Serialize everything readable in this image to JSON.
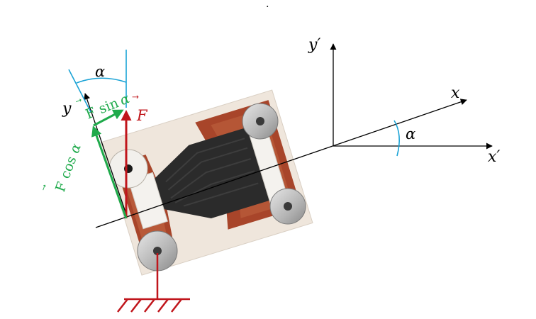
{
  "labels": {
    "alpha": "α",
    "axis_y": "y",
    "axis_y_prime": "y′",
    "axis_x": "x",
    "axis_x_prime": "x′",
    "vec_arrow": "⃗",
    "force_F": "F",
    "force_sin_prefix": "F",
    "force_sin_fn": "sin",
    "force_cos_prefix": "F",
    "force_cos_fn": "cos",
    "dot": "."
  },
  "colors": {
    "axes": "#000000",
    "angle_arc": "#1ba3d6",
    "force": "#c0151b",
    "components": "#1faa4b",
    "ground": "#c0151b",
    "plate_base": "#efe6dc",
    "copper": "#a8452a",
    "carbon": "#2b2b2b",
    "steel": "#b9b9b9"
  },
  "values": {
    "rotation_angle_deg": 17
  }
}
